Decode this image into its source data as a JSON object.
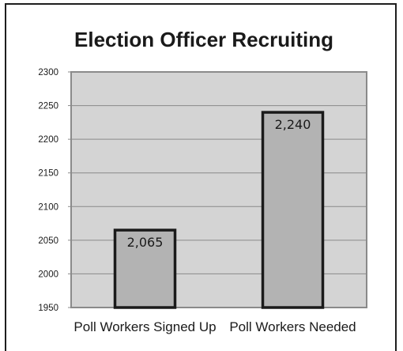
{
  "chart_data": {
    "type": "bar",
    "title": "Election Officer Recruiting",
    "xlabel": "",
    "ylabel": "",
    "categories": [
      "Poll Workers Signed Up",
      "Poll Workers Needed"
    ],
    "values": [
      2065,
      2240
    ],
    "data_labels": [
      "2,065",
      "2,240"
    ],
    "ylim": [
      1950,
      2300
    ],
    "yticks": [
      1950,
      2000,
      2050,
      2100,
      2150,
      2200,
      2250,
      2300
    ],
    "grid": true,
    "legend": "none",
    "colors": {
      "plot_background": "#d4d4d4",
      "bar_fill": "#b3b3b3",
      "bar_edge": "#1a1a1a",
      "gridline": "#8a8a8a",
      "axis": "#8a8a8a"
    }
  }
}
